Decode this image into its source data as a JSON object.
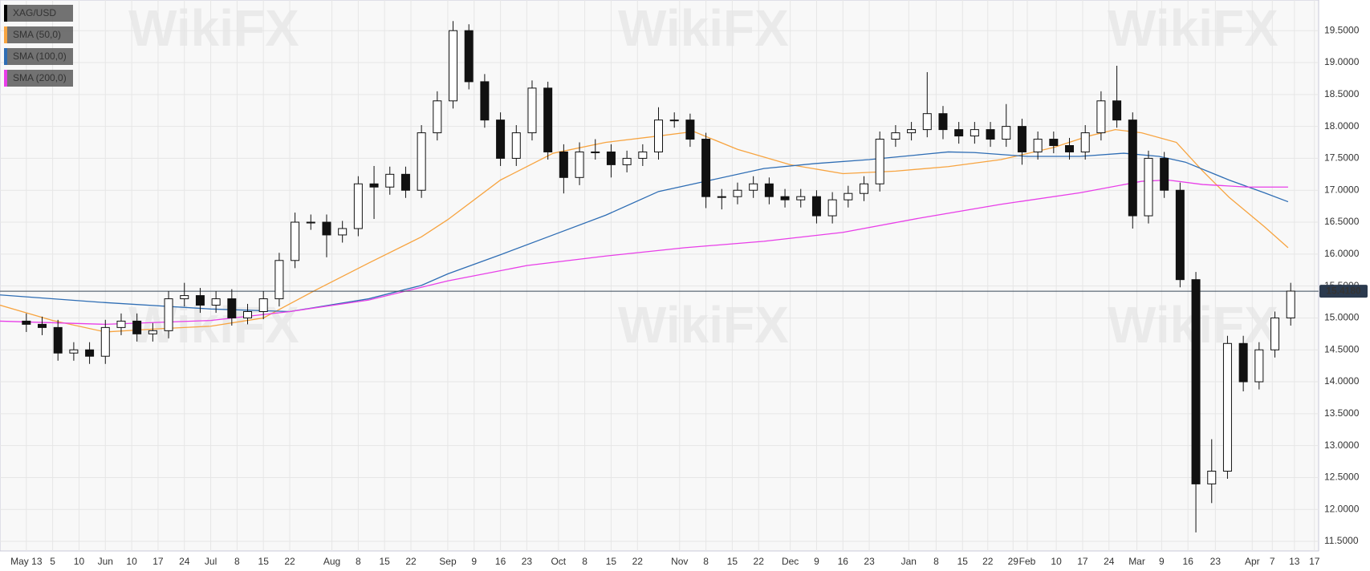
{
  "chart_data": {
    "type": "candlestick",
    "watermark": "WikiFX",
    "xlim": [
      -5,
      245.3
    ],
    "ylim": [
      11.35,
      19.98
    ],
    "xticks": [
      {
        "value": 0,
        "label": "May 13"
      },
      5,
      10,
      {
        "value": 15,
        "label": "Jun"
      },
      {
        "value": 20,
        "label": "10"
      },
      {
        "value": 25,
        "label": "17"
      },
      {
        "value": 30,
        "label": "24"
      },
      {
        "value": 35,
        "label": "Jul"
      },
      {
        "value": 40,
        "label": "8"
      },
      {
        "value": 45,
        "label": "15"
      },
      {
        "value": 50,
        "label": "22"
      },
      {
        "value": 58,
        "label": "Aug"
      },
      {
        "value": 63,
        "label": "8"
      },
      {
        "value": 68,
        "label": "15"
      },
      {
        "value": 73,
        "label": "22"
      },
      {
        "value": 80,
        "label": "Sep"
      },
      {
        "value": 85,
        "label": "9"
      },
      {
        "value": 90,
        "label": "16"
      },
      {
        "value": 95,
        "label": "23"
      },
      {
        "value": 101,
        "label": "Oct"
      },
      {
        "value": 106,
        "label": "8"
      },
      {
        "value": 111,
        "label": "15"
      },
      {
        "value": 116,
        "label": "22"
      },
      {
        "value": 124,
        "label": "Nov"
      },
      {
        "value": 129,
        "label": "8"
      },
      {
        "value": 134,
        "label": "15"
      },
      {
        "value": 139,
        "label": "22"
      },
      {
        "value": 145,
        "label": "Dec"
      },
      {
        "value": 150,
        "label": "9"
      },
      {
        "value": 155,
        "label": "16"
      },
      {
        "value": 160,
        "label": "23"
      },
      {
        "value": 167.5,
        "label": "Jan"
      },
      {
        "value": 172.7,
        "label": "8"
      },
      {
        "value": 177.7,
        "label": "15"
      },
      {
        "value": 182.5,
        "label": "22"
      },
      {
        "value": 187.3,
        "label": "29"
      },
      {
        "value": 190,
        "label": "Feb"
      },
      {
        "value": 195.5,
        "label": "10"
      },
      {
        "value": 200.5,
        "label": "17"
      },
      {
        "value": 205.5,
        "label": "24"
      },
      {
        "value": 210.8,
        "label": "Mar"
      },
      {
        "value": 215.5,
        "label": "9"
      },
      {
        "value": 220.5,
        "label": "16"
      },
      {
        "value": 225.7,
        "label": "23"
      },
      {
        "value": 232.7,
        "label": "Apr"
      },
      {
        "value": 236.5,
        "label": "7"
      },
      {
        "value": 240.7,
        "label": "13"
      },
      {
        "value": 244.5,
        "label": "17"
      }
    ],
    "yticks": [
      {
        "value": 11.5,
        "label": "11.5000"
      },
      {
        "value": 12,
        "label": "12.0000"
      },
      {
        "value": 12.5,
        "label": "12.5000"
      },
      {
        "value": 13,
        "label": "13.0000"
      },
      {
        "value": 13.5,
        "label": "13.5000"
      },
      {
        "value": 14,
        "label": "14.0000"
      },
      {
        "value": 14.5,
        "label": "14.5000"
      },
      {
        "value": 15,
        "label": "15.0000"
      },
      {
        "value": 15.5,
        "label": "15.5000"
      },
      {
        "value": 16,
        "label": "16.0000"
      },
      {
        "value": 16.5,
        "label": "16.5000"
      },
      {
        "value": 17,
        "label": "17.0000"
      },
      {
        "value": 17.5,
        "label": "17.5000"
      },
      {
        "value": 18,
        "label": "18.0000"
      },
      {
        "value": 18.5,
        "label": "18.5000"
      },
      {
        "value": 19,
        "label": "19.0000"
      },
      {
        "value": 19.5,
        "label": "19.5000"
      }
    ],
    "grid": true,
    "current_price": 15.418,
    "current_price_label": "15.4180",
    "candles": {
      "name": "XAG/USD",
      "color": "#111111",
      "x": [
        0,
        3,
        6,
        9,
        12,
        15,
        18,
        21,
        24,
        27,
        30,
        33,
        36,
        39,
        42,
        45,
        48,
        51,
        54,
        57,
        60,
        63,
        66,
        69,
        72,
        75,
        78,
        81,
        84,
        87,
        90,
        93,
        96,
        99,
        102,
        105,
        108,
        111,
        114,
        117,
        120,
        123,
        126,
        129,
        132,
        135,
        138,
        141,
        144,
        147,
        150,
        153,
        156,
        159,
        162,
        165,
        168,
        171,
        174,
        177,
        180,
        183,
        186,
        189,
        192,
        195,
        198,
        201,
        204,
        207,
        210,
        213,
        216,
        219,
        222,
        225,
        228,
        231,
        234,
        237,
        240
      ],
      "open": [
        14.95,
        14.9,
        14.85,
        14.45,
        14.5,
        14.4,
        14.85,
        14.95,
        14.75,
        14.8,
        15.3,
        15.35,
        15.2,
        15.3,
        15.0,
        15.1,
        15.3,
        15.9,
        16.5,
        16.5,
        16.3,
        16.4,
        17.1,
        17.05,
        17.25,
        17.0,
        17.9,
        18.4,
        19.5,
        18.7,
        18.1,
        17.5,
        17.9,
        18.6,
        17.6,
        17.2,
        17.6,
        17.6,
        17.4,
        17.5,
        17.6,
        18.1,
        18.1,
        17.8,
        16.9,
        16.9,
        17.0,
        17.1,
        16.9,
        16.85,
        16.9,
        16.6,
        16.85,
        16.95,
        17.1,
        17.8,
        17.9,
        17.95,
        18.2,
        17.95,
        17.85,
        17.95,
        17.8,
        18.0,
        17.6,
        17.8,
        17.7,
        17.6,
        17.9,
        18.4,
        18.1,
        16.6,
        17.5,
        17.0,
        15.6,
        12.4,
        12.6,
        14.6,
        14.0,
        14.5,
        15.0
      ],
      "high": [
        15.07,
        15.02,
        14.97,
        14.62,
        14.62,
        14.97,
        15.07,
        15.07,
        14.92,
        15.42,
        15.55,
        15.47,
        15.42,
        15.45,
        15.22,
        15.42,
        16.02,
        16.65,
        16.62,
        16.62,
        16.52,
        17.22,
        17.38,
        17.37,
        17.37,
        18.02,
        18.55,
        19.65,
        19.6,
        18.82,
        18.22,
        18.02,
        18.72,
        18.7,
        17.72,
        17.75,
        17.8,
        17.72,
        17.62,
        17.72,
        18.3,
        18.22,
        18.2,
        17.9,
        17.02,
        17.12,
        17.22,
        17.2,
        17.02,
        17.02,
        17.0,
        16.97,
        17.07,
        17.22,
        17.92,
        18.02,
        18.07,
        18.85,
        18.32,
        18.07,
        18.07,
        18.07,
        18.35,
        18.12,
        17.92,
        17.92,
        17.82,
        18.02,
        18.55,
        18.95,
        18.22,
        17.62,
        17.6,
        17.12,
        15.72,
        13.1,
        14.72,
        14.72,
        14.62,
        15.1,
        15.55
      ],
      "low": [
        14.78,
        14.73,
        14.33,
        14.33,
        14.28,
        14.28,
        14.73,
        14.63,
        14.63,
        14.68,
        15.18,
        15.08,
        15.08,
        14.88,
        14.9,
        14.98,
        15.18,
        15.78,
        16.38,
        15.95,
        16.18,
        16.28,
        16.55,
        16.93,
        16.88,
        16.88,
        17.78,
        18.28,
        18.58,
        17.98,
        17.38,
        17.38,
        17.78,
        17.48,
        16.95,
        17.08,
        17.48,
        17.2,
        17.28,
        17.38,
        17.48,
        17.98,
        17.68,
        16.72,
        16.7,
        16.78,
        16.88,
        16.78,
        16.73,
        16.73,
        16.48,
        16.48,
        16.73,
        16.83,
        16.98,
        17.68,
        17.78,
        17.83,
        17.8,
        17.73,
        17.73,
        17.68,
        17.68,
        17.4,
        17.48,
        17.58,
        17.48,
        17.48,
        17.78,
        17.98,
        16.4,
        16.48,
        16.88,
        15.48,
        11.64,
        12.1,
        12.48,
        13.85,
        13.88,
        14.38,
        14.88
      ],
      "close": [
        14.9,
        14.85,
        14.45,
        14.5,
        14.4,
        14.85,
        14.95,
        14.75,
        14.8,
        15.3,
        15.35,
        15.2,
        15.3,
        15.0,
        15.1,
        15.3,
        15.9,
        16.5,
        16.5,
        16.3,
        16.4,
        17.1,
        17.05,
        17.25,
        17.0,
        17.9,
        18.4,
        19.5,
        18.7,
        18.1,
        17.5,
        17.9,
        18.6,
        17.6,
        17.2,
        17.6,
        17.6,
        17.4,
        17.5,
        17.6,
        18.1,
        18.1,
        17.8,
        16.9,
        16.9,
        17.0,
        17.1,
        16.9,
        16.85,
        16.9,
        16.6,
        16.85,
        16.95,
        17.1,
        17.8,
        17.9,
        17.95,
        18.2,
        17.95,
        17.85,
        17.95,
        17.8,
        18.0,
        17.6,
        17.8,
        17.7,
        17.6,
        17.9,
        18.4,
        18.1,
        16.6,
        17.5,
        17.0,
        15.6,
        12.4,
        12.6,
        14.6,
        14.0,
        14.5,
        15.0,
        15.42
      ]
    },
    "series": [
      {
        "name": "SMA (50,0)",
        "color": "#f7a440",
        "x": [
          -5,
          5,
          15,
          25,
          35,
          45,
          55,
          65,
          75,
          80,
          90,
          100,
          110,
          120,
          126.7,
          135,
          145,
          155,
          165,
          175,
          185,
          195,
          201.7,
          206.7,
          211.7,
          218.3,
          223.3,
          228.3,
          235,
          239.5
        ],
        "values": [
          15.2,
          14.96,
          14.78,
          14.83,
          14.87,
          15.0,
          15.44,
          15.86,
          16.27,
          16.54,
          17.16,
          17.58,
          17.75,
          17.85,
          17.92,
          17.64,
          17.4,
          17.26,
          17.3,
          17.37,
          17.48,
          17.67,
          17.85,
          17.95,
          17.9,
          17.75,
          17.3,
          16.89,
          16.43,
          16.1
        ]
      },
      {
        "name": "SMA (100,0)",
        "color": "#2e6db4",
        "x": [
          -5,
          15,
          35,
          50,
          65,
          75,
          80,
          90,
          100,
          110,
          120,
          130,
          140,
          150,
          160,
          170,
          175,
          180,
          190,
          200,
          208.3,
          215,
          220,
          228.3,
          235,
          239.5
        ],
        "values": [
          15.36,
          15.24,
          15.14,
          15.1,
          15.3,
          15.51,
          15.69,
          15.99,
          16.3,
          16.61,
          16.98,
          17.16,
          17.34,
          17.42,
          17.48,
          17.56,
          17.6,
          17.59,
          17.53,
          17.53,
          17.58,
          17.53,
          17.44,
          17.16,
          16.96,
          16.82
        ]
      },
      {
        "name": "SMA (200,0)",
        "color": "#e83ee8",
        "x": [
          -5,
          15,
          35,
          50,
          65,
          80,
          95,
          110,
          125,
          140,
          155,
          170,
          185,
          200,
          211.7,
          216.7,
          223.3,
          231.7,
          239.5
        ],
        "values": [
          14.95,
          14.9,
          14.96,
          15.1,
          15.28,
          15.58,
          15.82,
          15.97,
          16.1,
          16.2,
          16.34,
          16.57,
          16.78,
          16.96,
          17.14,
          17.16,
          17.09,
          17.05,
          17.05
        ]
      }
    ]
  }
}
